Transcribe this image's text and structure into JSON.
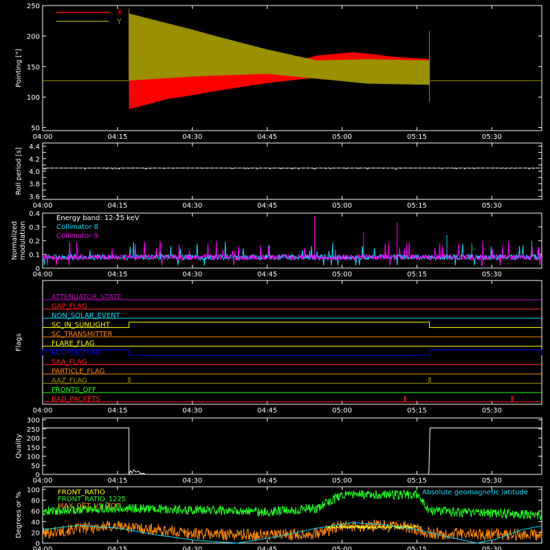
{
  "time_axis": {
    "range_minutes": [
      0,
      100
    ],
    "ticks": [
      {
        "min": 0,
        "label": "04:00"
      },
      {
        "min": 15,
        "label": "04:15"
      },
      {
        "min": 30,
        "label": "04:30"
      },
      {
        "min": 45,
        "label": "04:45"
      },
      {
        "min": 60,
        "label": "05:00"
      },
      {
        "min": 75,
        "label": "05:15"
      },
      {
        "min": 90,
        "label": "05:30"
      }
    ]
  },
  "colors": {
    "axis": "#ffffff",
    "x_red": "#ff0000",
    "y_olive": "#9a9000",
    "cyan": "#00e0ff",
    "magenta": "#ff00ff",
    "green": "#20ff20",
    "orange": "#ff8800",
    "yellow": "#ffff00",
    "blue": "#0000ff"
  },
  "chart_data": [
    {
      "id": "pointing",
      "type": "line",
      "ylabel": "Pointing [\"]",
      "ylim": [
        45,
        250
      ],
      "yticks": [
        50,
        100,
        150,
        200,
        250
      ],
      "legend": [
        {
          "name": "X",
          "color": "#ff0000"
        },
        {
          "name": "Y",
          "color": "#9a9000"
        }
      ],
      "baseline_value": 127,
      "active_interval_min": [
        17.3,
        77.5
      ],
      "series": [
        {
          "name": "X",
          "color": "#ff0000",
          "center": [
            [
              17.3,
              125
            ],
            [
              30,
              128
            ],
            [
              45,
              135
            ],
            [
              55,
              150
            ],
            [
              65,
              152
            ],
            [
              77.5,
              150
            ]
          ],
          "half_amplitude": [
            [
              17.3,
              45
            ],
            [
              25,
              30
            ],
            [
              35,
              20
            ],
            [
              45,
              12
            ],
            [
              55,
              18
            ],
            [
              62,
              22
            ],
            [
              70,
              15
            ],
            [
              77.5,
              12
            ]
          ]
        },
        {
          "name": "Y",
          "color": "#9a9000",
          "center": [
            [
              17.3,
              182
            ],
            [
              30,
              172
            ],
            [
              45,
              158
            ],
            [
              55,
              145
            ],
            [
              65,
              142
            ],
            [
              77.5,
              140
            ]
          ],
          "half_amplitude": [
            [
              17.3,
              55
            ],
            [
              25,
              45
            ],
            [
              35,
              32
            ],
            [
              45,
              20
            ],
            [
              55,
              15
            ],
            [
              65,
              20
            ],
            [
              77.5,
              20
            ]
          ]
        }
      ]
    },
    {
      "id": "roll",
      "type": "line",
      "ylabel": "Roll period [s]",
      "ylim": [
        3.55,
        4.45
      ],
      "yticks": [
        3.6,
        3.7,
        3.8,
        3.9,
        4.0,
        4.1,
        4.2,
        4.3,
        4.4
      ],
      "ytick_labels": [
        "3.6",
        "3.8",
        "4.0",
        "4.2",
        "4.4"
      ],
      "series": [
        {
          "name": "",
          "color": "#ffffff",
          "value": 4.05
        }
      ]
    },
    {
      "id": "modulation",
      "type": "line",
      "ylabel": "Normalized modulation",
      "ylim": [
        0,
        0.4
      ],
      "yticks": [
        0.0,
        0.1,
        0.2,
        0.3,
        0.4
      ],
      "annotation": "Energy band: 12-25 keV",
      "legend": [
        {
          "name": "Collimator 8",
          "color": "#00e0ff"
        },
        {
          "name": "Collimator 9",
          "color": "#ff00ff"
        }
      ],
      "series": [
        {
          "name": "Collimator 8",
          "color": "#00e0ff",
          "typical": 0.08
        },
        {
          "name": "Collimator 9",
          "color": "#ff00ff",
          "typical": 0.08
        }
      ]
    },
    {
      "id": "flags",
      "type": "line",
      "ylabel": "Flags",
      "flags": [
        {
          "name": "ATTENUATOR_STATE",
          "color": "#cc00cc",
          "states": []
        },
        {
          "name": "GAP_FLAG",
          "color": "#ff2020",
          "states": []
        },
        {
          "name": "NON_SOLAR_EVENT",
          "color": "#00e0ff",
          "states": []
        },
        {
          "name": "SC_IN_SUNLIGHT",
          "color": "#ffff00",
          "states": [
            [
              17.3,
              77.5
            ]
          ]
        },
        {
          "name": "SC_TRANSMITTER",
          "color": "#ff8800",
          "states": []
        },
        {
          "name": "FLARE_FLAG",
          "color": "#ffff00",
          "states": []
        },
        {
          "name": "ECLIPSE_FLAG",
          "color": "#0000ff",
          "states": [
            [
              0,
              17.3
            ],
            [
              77.5,
              100
            ]
          ]
        },
        {
          "name": "SAA_FLAG",
          "color": "#ff2020",
          "states": []
        },
        {
          "name": "PARTICLE_FLAG",
          "color": "#ff8800",
          "states": []
        },
        {
          "name": "AAZ_FLAG",
          "color": "#9a9000",
          "states": [
            [
              17.2,
              17.5
            ],
            [
              77.4,
              77.7
            ]
          ]
        },
        {
          "name": "FRONTS_OFF",
          "color": "#20ff20",
          "states": []
        },
        {
          "name": "BAD_PACKETS",
          "color": "#ff2020",
          "states": [
            [
              72.5,
              72.7
            ],
            [
              94.0,
              94.2
            ]
          ]
        }
      ]
    },
    {
      "id": "quality",
      "type": "line",
      "ylabel": "Quality",
      "ylim": [
        0,
        310
      ],
      "yticks": [
        0,
        50,
        100,
        150,
        200,
        250,
        300
      ],
      "ytick_labels": [
        "0",
        "50",
        "100",
        "150",
        "200",
        "250",
        "300"
      ],
      "series": [
        {
          "name": "",
          "color": "#ffffff",
          "points": [
            [
              0,
              255
            ],
            [
              17.3,
              255
            ],
            [
              17.3,
              0
            ],
            [
              17.6,
              20
            ],
            [
              17.9,
              8
            ],
            [
              18.3,
              25
            ],
            [
              18.7,
              12
            ],
            [
              19.2,
              18
            ],
            [
              19.6,
              5
            ],
            [
              20.2,
              6
            ],
            [
              20.6,
              0
            ],
            [
              77.3,
              0
            ],
            [
              77.4,
              15
            ],
            [
              77.6,
              255
            ],
            [
              100,
              255
            ]
          ]
        }
      ]
    },
    {
      "id": "latitude",
      "type": "line",
      "ylabel": "Degrees or %",
      "ylim": [
        0,
        105
      ],
      "yticks": [
        0,
        20,
        40,
        60,
        80,
        100
      ],
      "annotation": "Absolute geomagnetic latitude",
      "legend": [
        {
          "name": "FRONT_RATIO",
          "color": "#ffff00"
        },
        {
          "name": "FRONT_RATIO_1225",
          "color": "#20ff20"
        },
        {
          "name": "MAX_DET_VS_TOT",
          "color": "#ff8800"
        }
      ],
      "series": [
        {
          "name": "FRONT_RATIO_1225",
          "color": "#20ff20",
          "levels": [
            [
              0,
              60
            ],
            [
              15,
              66
            ],
            [
              30,
              62
            ],
            [
              45,
              58
            ],
            [
              55,
              65
            ],
            [
              60,
              90
            ],
            [
              75,
              90
            ],
            [
              77.5,
              60
            ],
            [
              100,
              52
            ]
          ]
        },
        {
          "name": "MAX_DET_VS_TOT",
          "color": "#ff8800",
          "levels": [
            [
              0,
              18
            ],
            [
              8,
              28
            ],
            [
              15,
              32
            ],
            [
              30,
              18
            ],
            [
              45,
              15
            ],
            [
              55,
              18
            ],
            [
              60,
              32
            ],
            [
              72,
              32
            ],
            [
              78,
              18
            ],
            [
              100,
              15
            ]
          ]
        },
        {
          "name": "FRONT_RATIO",
          "color": "#ffff00",
          "levels": [
            [
              57,
              30
            ],
            [
              75,
              30
            ]
          ]
        },
        {
          "name": "Absolute geomagnetic latitude",
          "color": "#00e0ff",
          "points": [
            [
              0,
              25
            ],
            [
              7,
              33
            ],
            [
              15,
              28
            ],
            [
              23,
              15
            ],
            [
              31,
              5
            ],
            [
              39,
              0
            ],
            [
              47,
              12
            ],
            [
              55,
              28
            ],
            [
              62,
              38
            ],
            [
              68,
              35
            ],
            [
              75,
              25
            ],
            [
              82,
              10
            ],
            [
              87,
              0
            ],
            [
              91,
              8
            ],
            [
              96,
              25
            ],
            [
              100,
              32
            ]
          ]
        }
      ]
    }
  ]
}
